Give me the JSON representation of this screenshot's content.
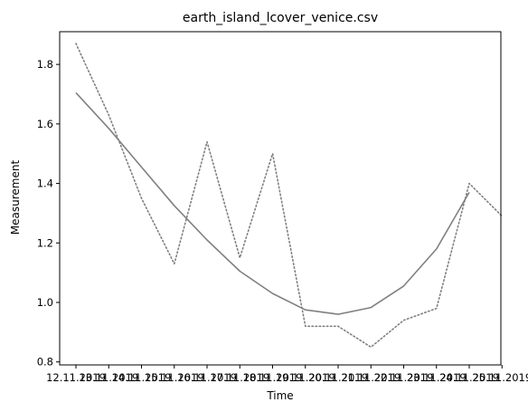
{
  "chart_data": {
    "type": "line",
    "title": "earth_island_lcover_venice.csv",
    "xlabel": "Time",
    "ylabel": "Measurement",
    "x_ticks": [
      "12.11.2019",
      "13.11.2019",
      "14.11.2019",
      "15.11.2019",
      "16.11.2019",
      "17.11.2019",
      "18.11.2019",
      "19.11.2019",
      "20.11.2019",
      "21.11.2019",
      "22.11.2019",
      "23.11.2019",
      "24.11.2019",
      "25.11.2019"
    ],
    "y_ticks": [
      "0.8",
      "1.0",
      "1.2",
      "1.4",
      "1.6",
      "1.8"
    ],
    "ylim": [
      0.79,
      1.91
    ],
    "grid": false,
    "series": [
      {
        "style": "dotted",
        "color": "#808080",
        "values": [
          1.87,
          1.63,
          1.35,
          1.13,
          1.54,
          1.15,
          1.5,
          0.92,
          0.92,
          0.85,
          0.94,
          0.98,
          1.4,
          1.29
        ]
      },
      {
        "style": "solid",
        "color": "#808080",
        "values": [
          1.705,
          1.585,
          1.455,
          1.325,
          1.21,
          1.105,
          1.03,
          0.975,
          0.96,
          0.983,
          1.055,
          1.18,
          1.37
        ]
      }
    ]
  }
}
